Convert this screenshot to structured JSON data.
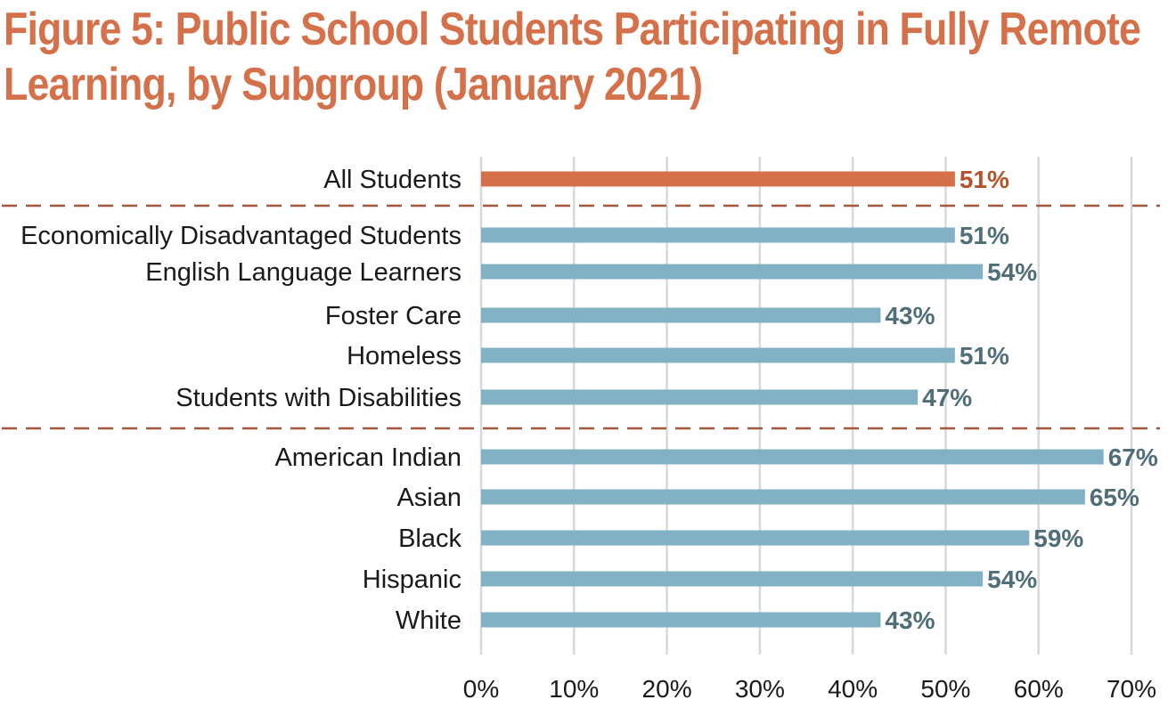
{
  "chart_data": {
    "type": "bar",
    "orientation": "horizontal",
    "title": "Figure 5: Public School Students Participating in Fully Remote Learning, by Subgroup (January 2021)",
    "categories": [
      "All Students",
      "Economically Disadvantaged Students",
      "English Language Learners",
      "Foster Care",
      "Homeless",
      "Students with Disabilities",
      "American Indian",
      "Asian",
      "Black",
      "Hispanic",
      "White"
    ],
    "values": [
      51,
      51,
      54,
      43,
      51,
      47,
      67,
      65,
      59,
      54,
      43
    ],
    "value_labels": [
      "51%",
      "51%",
      "54%",
      "43%",
      "51%",
      "47%",
      "67%",
      "65%",
      "59%",
      "54%",
      "43%"
    ],
    "groups": [
      [
        "All Students"
      ],
      [
        "Economically Disadvantaged Students",
        "English Language Learners",
        "Foster Care",
        "Homeless",
        "Students with Disabilities"
      ],
      [
        "American Indian",
        "Asian",
        "Black",
        "Hispanic",
        "White"
      ]
    ],
    "xlim": [
      0,
      70
    ],
    "x_ticks": [
      "0%",
      "10%",
      "20%",
      "30%",
      "40%",
      "50%",
      "60%",
      "70%"
    ],
    "grid": "vertical",
    "colors": {
      "highlight_bar": "#d4714a",
      "highlight_label": "#b5522e",
      "bar": "#82b1c6",
      "value_label": "#4f6e78",
      "separator": "#a3563a",
      "gridline": "#d9d9d9"
    }
  }
}
